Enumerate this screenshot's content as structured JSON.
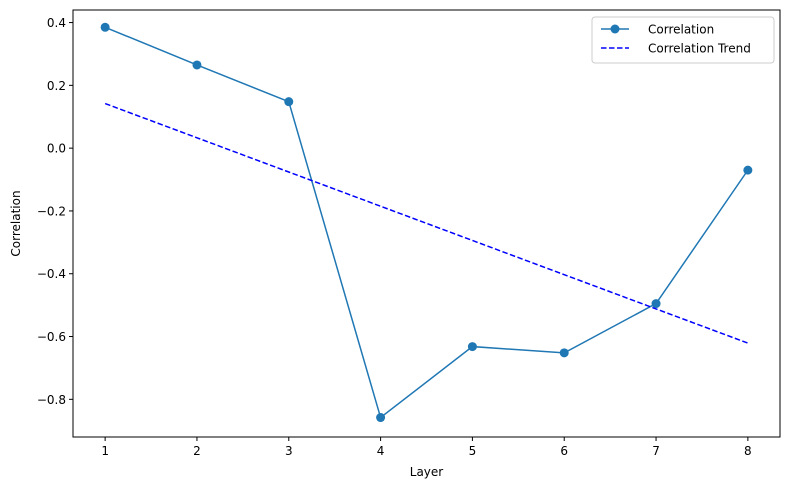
{
  "chart_data": {
    "type": "line",
    "xlabel": "Layer",
    "ylabel": "Correlation",
    "x": [
      1,
      2,
      3,
      4,
      5,
      6,
      7,
      8
    ],
    "xlim": [
      0.65,
      8.35
    ],
    "ylim": [
      -0.92,
      0.44
    ],
    "xticks": [
      1,
      2,
      3,
      4,
      5,
      6,
      7,
      8
    ],
    "yticks": [
      0.4,
      0.2,
      0.0,
      -0.2,
      -0.4,
      -0.6,
      -0.8
    ],
    "ytick_labels": [
      "0.4",
      "0.2",
      "0.0",
      "−0.2",
      "−0.4",
      "−0.6",
      "−0.8"
    ],
    "grid": false,
    "legend_position": "top-right",
    "series": [
      {
        "name": "Correlation",
        "style": "solid-with-markers",
        "color": "#1f77b4",
        "values": [
          0.385,
          0.265,
          0.148,
          -0.858,
          -0.632,
          -0.652,
          -0.495,
          -0.07
        ]
      },
      {
        "name": "Correlation Trend",
        "style": "dashed",
        "color": "#0000ff",
        "values": [
          0.142,
          0.033,
          -0.076,
          -0.185,
          -0.294,
          -0.403,
          -0.512,
          -0.621
        ]
      }
    ]
  }
}
